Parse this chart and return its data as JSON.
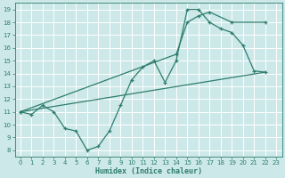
{
  "bg_color": "#cce8e8",
  "grid_color": "#ffffff",
  "line_color": "#2e7d6e",
  "xlabel": "Humidex (Indice chaleur)",
  "xlim": [
    -0.5,
    23.5
  ],
  "ylim": [
    7.5,
    19.5
  ],
  "xticks": [
    0,
    1,
    2,
    3,
    4,
    5,
    6,
    7,
    8,
    9,
    10,
    11,
    12,
    13,
    14,
    15,
    16,
    17,
    18,
    19,
    20,
    21,
    22,
    23
  ],
  "yticks": [
    8,
    9,
    10,
    11,
    12,
    13,
    14,
    15,
    16,
    17,
    18,
    19
  ],
  "zigzag_x": [
    0,
    1,
    2,
    3,
    4,
    5,
    6,
    7,
    8,
    9,
    10,
    11,
    12,
    13,
    14,
    15,
    16,
    17,
    18,
    19,
    20,
    21,
    22
  ],
  "zigzag_y": [
    11,
    10.8,
    11.5,
    11,
    9.7,
    9.5,
    8.0,
    8.3,
    9.5,
    11.5,
    13.5,
    14.5,
    15.0,
    13.3,
    15.0,
    19.0,
    19.0,
    18.0,
    17.5,
    17.2,
    16.2,
    14.2,
    14.1
  ],
  "upper_line_x": [
    0,
    14,
    15,
    16,
    17,
    19,
    22
  ],
  "upper_line_y": [
    11,
    15.5,
    18.0,
    18.5,
    18.8,
    18.0,
    18.0
  ],
  "lower_line_x": [
    0,
    22
  ],
  "lower_line_y": [
    11,
    14.1
  ]
}
